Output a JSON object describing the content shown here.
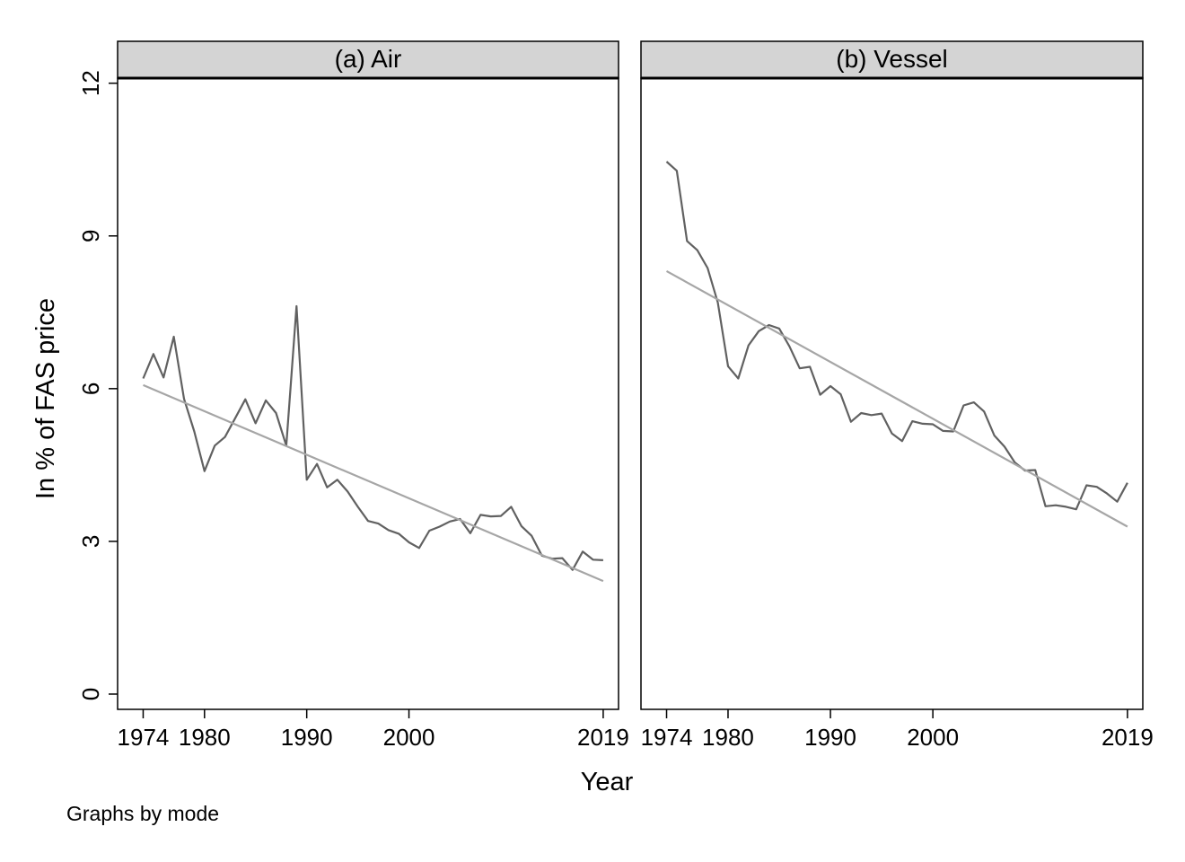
{
  "chart_data": {
    "type": "line",
    "note": "Graphs by mode",
    "xlabel": "Year",
    "ylabel": "In % of FAS price",
    "x_ticks": [
      1974,
      1980,
      1990,
      2000,
      2019
    ],
    "y_ticks": [
      0,
      3,
      6,
      9,
      12
    ],
    "xlim": [
      1971.5,
      2020.5
    ],
    "ylim": [
      -0.3,
      12.1
    ],
    "grid": false,
    "panels": [
      {
        "title": "(a) Air",
        "series": [
          {
            "color": "#616161",
            "x": [
              1974,
              1975,
              1976,
              1977,
              1978,
              1979,
              1980,
              1981,
              1982,
              1983,
              1984,
              1985,
              1986,
              1987,
              1988,
              1989,
              1990,
              1991,
              1992,
              1993,
              1994,
              1995,
              1996,
              1997,
              1998,
              1999,
              2000,
              2001,
              2002,
              2003,
              2004,
              2005,
              2006,
              2007,
              2008,
              2009,
              2010,
              2011,
              2012,
              2013,
              2014,
              2015,
              2016,
              2017,
              2018,
              2019
            ],
            "y": [
              6.2,
              6.68,
              6.22,
              7.02,
              5.8,
              5.16,
              4.38,
              4.88,
              5.05,
              5.42,
              5.79,
              5.32,
              5.77,
              5.52,
              4.88,
              7.62,
              4.21,
              4.52,
              4.06,
              4.21,
              3.98,
              3.68,
              3.4,
              3.35,
              3.22,
              3.15,
              2.98,
              2.87,
              3.21,
              3.29,
              3.39,
              3.44,
              3.16,
              3.52,
              3.49,
              3.5,
              3.68,
              3.3,
              3.11,
              2.72,
              2.66,
              2.67,
              2.44,
              2.8,
              2.64,
              2.63
            ]
          },
          {
            "color": "#a6a6a6",
            "x": [
              1974,
              2019
            ],
            "y": [
              6.07,
              2.22
            ]
          }
        ]
      },
      {
        "title": "(b) Vessel",
        "series": [
          {
            "color": "#616161",
            "x": [
              1974,
              1975,
              1976,
              1977,
              1978,
              1979,
              1980,
              1981,
              1982,
              1983,
              1984,
              1985,
              1986,
              1987,
              1988,
              1989,
              1990,
              1991,
              1992,
              1993,
              1994,
              1995,
              1996,
              1997,
              1998,
              1999,
              2000,
              2001,
              2002,
              2003,
              2004,
              2005,
              2006,
              2007,
              2008,
              2009,
              2010,
              2011,
              2012,
              2013,
              2014,
              2015,
              2016,
              2017,
              2018,
              2019
            ],
            "y": [
              10.46,
              10.28,
              8.9,
              8.72,
              8.37,
              7.69,
              6.44,
              6.2,
              6.85,
              7.13,
              7.25,
              7.18,
              6.83,
              6.4,
              6.43,
              5.88,
              6.05,
              5.89,
              5.35,
              5.52,
              5.48,
              5.51,
              5.12,
              4.97,
              5.36,
              5.31,
              5.3,
              5.17,
              5.16,
              5.67,
              5.73,
              5.55,
              5.08,
              4.86,
              4.55,
              4.39,
              4.4,
              3.69,
              3.71,
              3.68,
              3.63,
              4.1,
              4.07,
              3.94,
              3.78,
              4.15
            ]
          },
          {
            "color": "#a6a6a6",
            "x": [
              1974,
              2019
            ],
            "y": [
              8.31,
              3.29
            ]
          }
        ]
      }
    ]
  }
}
